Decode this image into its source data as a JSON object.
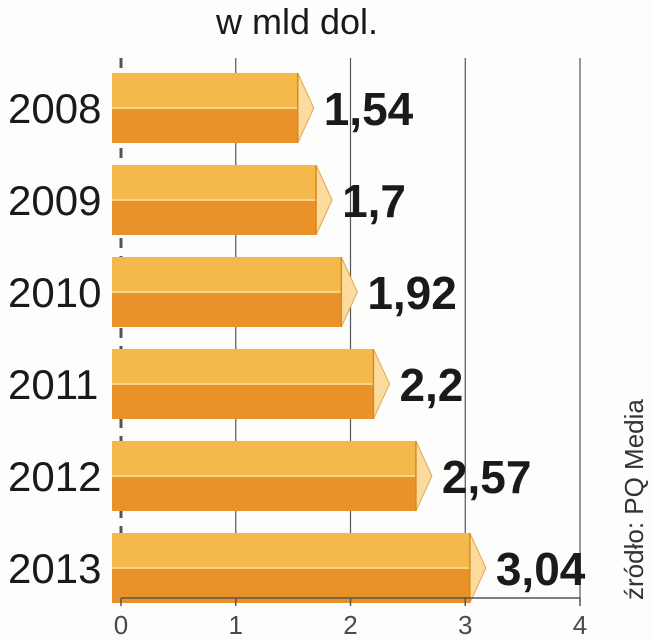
{
  "unit_label": "w mld dol.",
  "source": "źródło: PQ Media",
  "colors": {
    "bar_top": "#f5b84a",
    "bar_bottom": "#e9922a",
    "bar_edge": "#f8d486",
    "bar_cap": "#fbdc9e",
    "gridline": "#555555",
    "text": "#1a1a1a"
  },
  "chart_data": {
    "type": "bar",
    "orientation": "horizontal",
    "categories": [
      "2008",
      "2009",
      "2010",
      "2011",
      "2012",
      "2013"
    ],
    "values": [
      1.54,
      1.7,
      1.92,
      2.2,
      2.57,
      3.04
    ],
    "value_labels": [
      "1,54",
      "1,7",
      "1,92",
      "2,2",
      "2,57",
      "3,04"
    ],
    "xlim": [
      0,
      4
    ],
    "xticks": [
      0,
      1,
      2,
      3,
      4
    ],
    "tick_labels": [
      "0",
      "1",
      "2",
      "3",
      "4"
    ],
    "title": "",
    "xlabel": "w mld dol.",
    "ylabel": "",
    "grid": true,
    "gridline_style": "vertical"
  }
}
